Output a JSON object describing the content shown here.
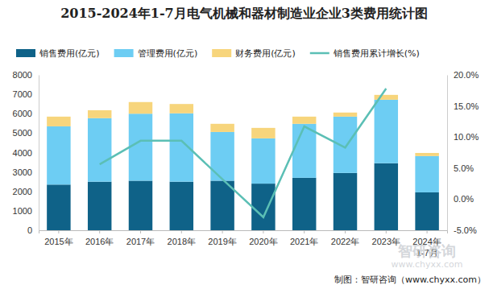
{
  "chart_data": {
    "type": "bar",
    "title": "2015-2024年1-7月电气机械和器材制造业企业3类费用统计图",
    "footer": "制图：智研咨询（www.chyxx.com）",
    "watermark": [
      "智研咨询",
      "www.chyxx.com"
    ],
    "categories": [
      "2015年",
      "2016年",
      "2017年",
      "2018年",
      "2019年",
      "2020年",
      "2021年",
      "2022年",
      "2023年",
      "2024年\n1-7月"
    ],
    "stacked": true,
    "grid": false,
    "legend": "top",
    "series": [
      {
        "name": "销售费用(亿元)",
        "type": "bar",
        "color": "#0f6288",
        "values": [
          2350,
          2500,
          2550,
          2500,
          2550,
          2400,
          2700,
          2950,
          3450,
          1950
        ]
      },
      {
        "name": "管理费用(亿元)",
        "type": "bar",
        "color": "#6dcdf3",
        "values": [
          3000,
          3270,
          3450,
          3520,
          2510,
          2330,
          2780,
          2900,
          3270,
          1870
        ]
      },
      {
        "name": "财务费用(亿元)",
        "type": "bar",
        "color": "#f7d57c",
        "values": [
          500,
          410,
          600,
          480,
          420,
          540,
          370,
          210,
          250,
          160
        ]
      },
      {
        "name": "销售费用累计增长(%)",
        "type": "line",
        "axis": "y2",
        "color": "#5bbfb5",
        "line_style": "solid",
        "values": [
          null,
          5.6,
          9.4,
          9.4,
          3.2,
          -2.9,
          11.7,
          8.3,
          17.8,
          null
        ]
      }
    ],
    "ylim": [
      0,
      8000
    ],
    "yticks": [
      0,
      1000,
      2000,
      3000,
      4000,
      5000,
      6000,
      7000,
      8000
    ],
    "y2lim": [
      -5,
      20
    ],
    "y2ticks": [
      {
        "value": -5,
        "label": "-5.0%"
      },
      {
        "value": 0,
        "label": "0.0%"
      },
      {
        "value": 5,
        "label": "5.0%"
      },
      {
        "value": 10,
        "label": "10.0%"
      },
      {
        "value": 15,
        "label": "15.0%"
      },
      {
        "value": 20,
        "label": "20.0%"
      }
    ]
  }
}
